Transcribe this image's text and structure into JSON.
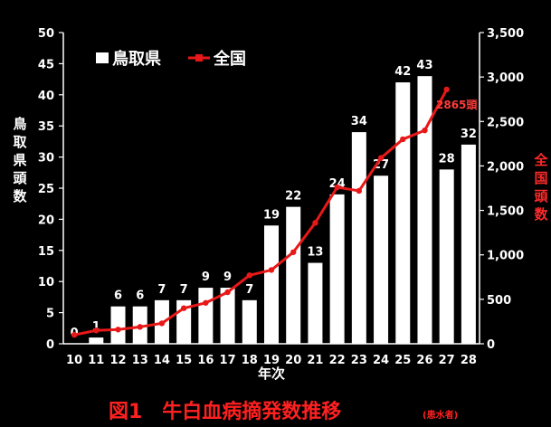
{
  "chart_data": {
    "type": "bar",
    "title": "図1　牛白血病摘発数推移",
    "subtitle": "(患水者)",
    "xlabel": "年次",
    "ylabel": "鳥取県頭数",
    "ylabel_right": "全国頭数",
    "categories": [
      "10",
      "11",
      "12",
      "13",
      "14",
      "15",
      "16",
      "17",
      "18",
      "19",
      "20",
      "21",
      "22",
      "23",
      "24",
      "25",
      "26",
      "27",
      "28"
    ],
    "ylim": [
      0,
      50
    ],
    "y_ticks": [
      0,
      5,
      10,
      15,
      20,
      25,
      30,
      35,
      40,
      45,
      50
    ],
    "ylim_right": [
      0,
      3500
    ],
    "y_ticks_right": [
      "0",
      "500",
      "1,000",
      "1,500",
      "2,000",
      "2,500",
      "3,000",
      "3,500"
    ],
    "y_ticks_right_values": [
      0,
      500,
      1000,
      1500,
      2000,
      2500,
      3000,
      3500
    ],
    "series": [
      {
        "name": "鳥取県",
        "type": "bar",
        "axis": "left",
        "color": "#ffffff",
        "values": [
          0,
          1,
          6,
          6,
          7,
          7,
          9,
          9,
          7,
          19,
          22,
          13,
          24,
          34,
          27,
          42,
          43,
          28,
          32
        ]
      },
      {
        "name": "全国",
        "type": "line",
        "axis": "right",
        "color": "#e81818",
        "values": [
          100,
          150,
          160,
          190,
          230,
          400,
          460,
          580,
          770,
          830,
          1030,
          1360,
          1760,
          1720,
          2090,
          2300,
          2400,
          2860,
          null
        ],
        "annotation": "2865頭"
      }
    ],
    "legend": {
      "placement": "top-left"
    },
    "grid": false
  }
}
